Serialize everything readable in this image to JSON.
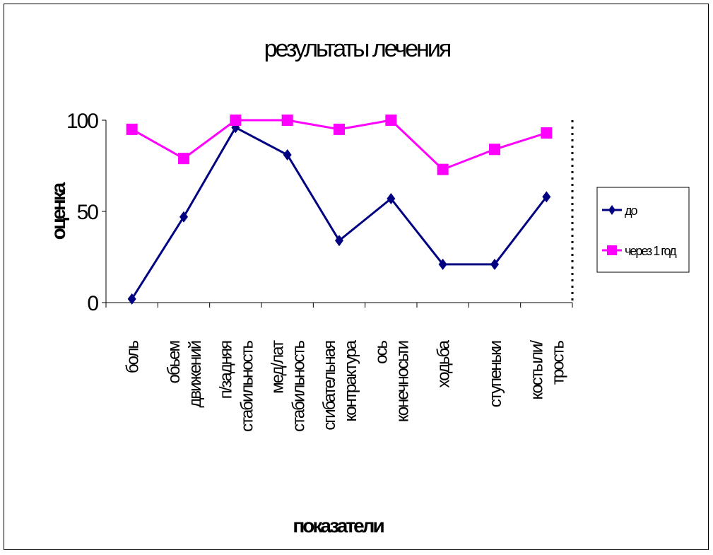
{
  "chart_data": {
    "type": "line",
    "title": "результаты лечения",
    "xlabel": "показатели",
    "ylabel": "оценка",
    "ylim": [
      0,
      100
    ],
    "yticks": [
      "0",
      "50",
      "100"
    ],
    "categories": [
      [
        "боль"
      ],
      [
        "обьем",
        "движений"
      ],
      [
        "п/задняя",
        "стабильность"
      ],
      [
        "мед/лат",
        "стабильность"
      ],
      [
        "сгибательная",
        "контрактура"
      ],
      [
        "ось",
        "конечносьти"
      ],
      [
        "ходьба"
      ],
      [
        "ступеньки"
      ],
      [
        "костыли/",
        "трость"
      ]
    ],
    "series": [
      {
        "name": "до",
        "color": "#000080",
        "marker": "diamond",
        "values": [
          2,
          47,
          96,
          81,
          34,
          57,
          21,
          21,
          58
        ]
      },
      {
        "name": "через 1 год",
        "color": "#FF00FF",
        "marker": "square",
        "values": [
          95,
          79,
          100,
          100,
          95,
          100,
          73,
          84,
          93
        ]
      }
    ],
    "legend_position": "right"
  }
}
